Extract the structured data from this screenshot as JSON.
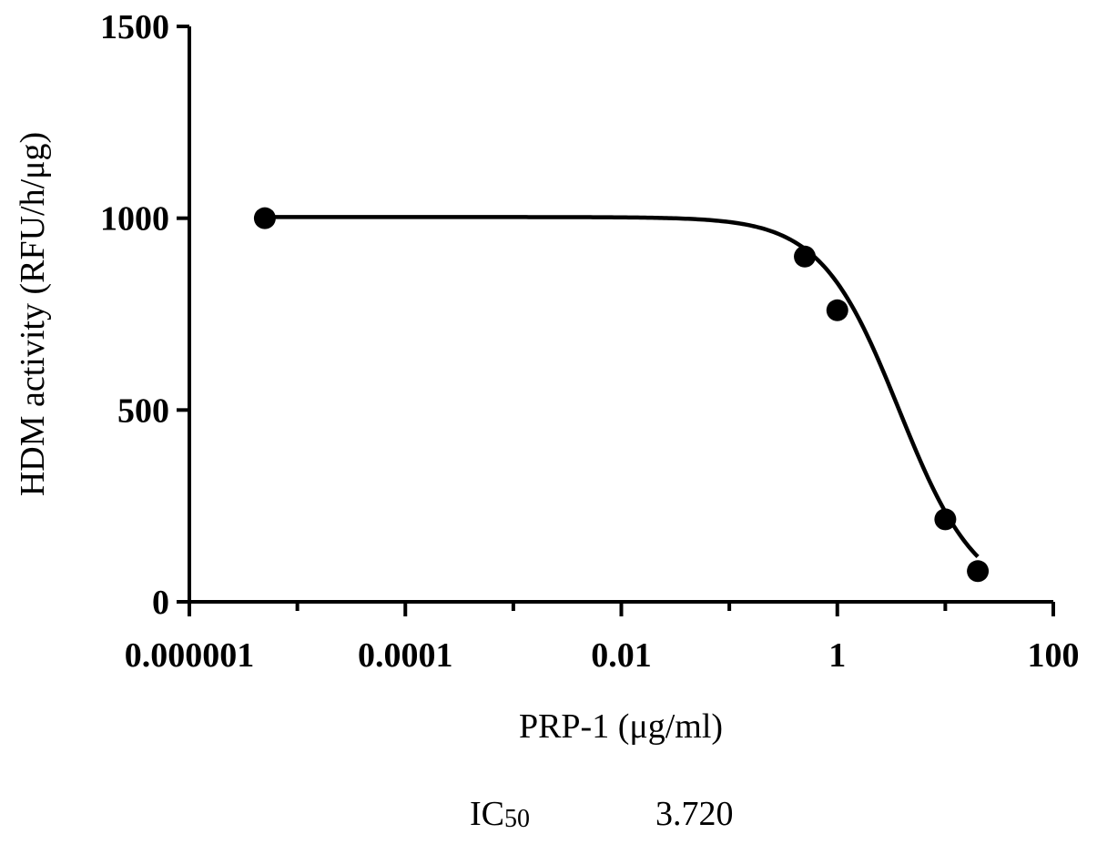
{
  "chart_data": {
    "type": "scatter",
    "xscale": "log",
    "xlabel": "PRP-1 (μg/ml)",
    "ylabel": "HDM activity (RFU/h/μg)",
    "xlim": [
      1e-06,
      100
    ],
    "ylim": [
      0,
      1500
    ],
    "x_ticks": [
      1e-06,
      0.0001,
      0.01,
      1,
      100
    ],
    "x_tick_labels": [
      "0.000001",
      "0.0001",
      "0.01",
      "1",
      "100"
    ],
    "y_ticks": [
      0,
      500,
      1000,
      1500
    ],
    "y_tick_labels": [
      "0",
      "500",
      "1000",
      "1500"
    ],
    "grid": false,
    "series": [
      {
        "points": [
          {
            "x": 5e-06,
            "y": 1000
          },
          {
            "x": 0.5,
            "y": 900
          },
          {
            "x": 1,
            "y": 760
          },
          {
            "x": 10,
            "y": 215
          },
          {
            "x": 20,
            "y": 80
          }
        ],
        "fit": {
          "model": "sigmoid",
          "top": 1003,
          "bottom": 0,
          "ic50": 3.72,
          "hill": 1.2
        }
      }
    ],
    "annotation": {
      "label": "IC",
      "subscript": "50",
      "value": "3.720"
    }
  }
}
